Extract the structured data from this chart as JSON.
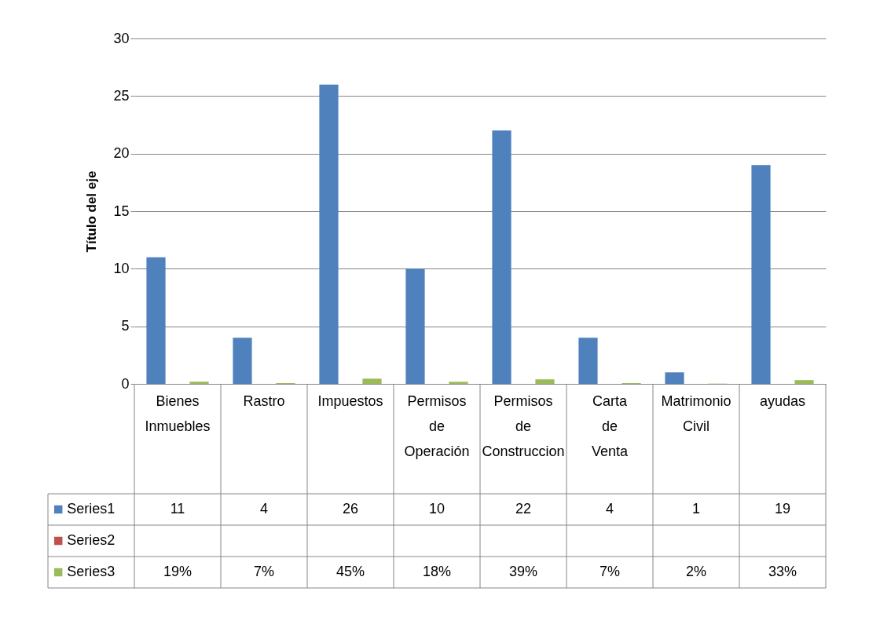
{
  "chart_data": {
    "type": "bar",
    "ylabel": "Título del eje",
    "categories": [
      "Bienes Inmuebles",
      "Rastro",
      "Impuestos",
      "Permisos de Operación",
      "Permisos de Construccion",
      "Carta de Venta",
      "Matrimonio Civil",
      "ayudas"
    ],
    "series": [
      {
        "name": "Series1",
        "color": "#4f81bd",
        "values": [
          11,
          4,
          26,
          10,
          22,
          4,
          1,
          19
        ],
        "value_labels": [
          "11",
          "4",
          "26",
          "10",
          "22",
          "4",
          "1",
          "19"
        ]
      },
      {
        "name": "Series2",
        "color": "#c0504d",
        "values": [
          null,
          null,
          null,
          null,
          null,
          null,
          null,
          null
        ],
        "value_labels": [
          null,
          null,
          null,
          null,
          null,
          null,
          null,
          null
        ]
      },
      {
        "name": "Series3",
        "color": "#9bbb59",
        "values": [
          0.19,
          0.07,
          0.45,
          0.18,
          0.39,
          0.07,
          0.02,
          0.33
        ],
        "value_labels": [
          "19%",
          "7%",
          "45%",
          "18%",
          "39%",
          "7%",
          "2%",
          "33%"
        ]
      }
    ],
    "ylim": [
      0,
      30
    ],
    "yticks": [
      0,
      5,
      10,
      15,
      20,
      25,
      30
    ],
    "grid": "y",
    "legend": "bottom left"
  }
}
